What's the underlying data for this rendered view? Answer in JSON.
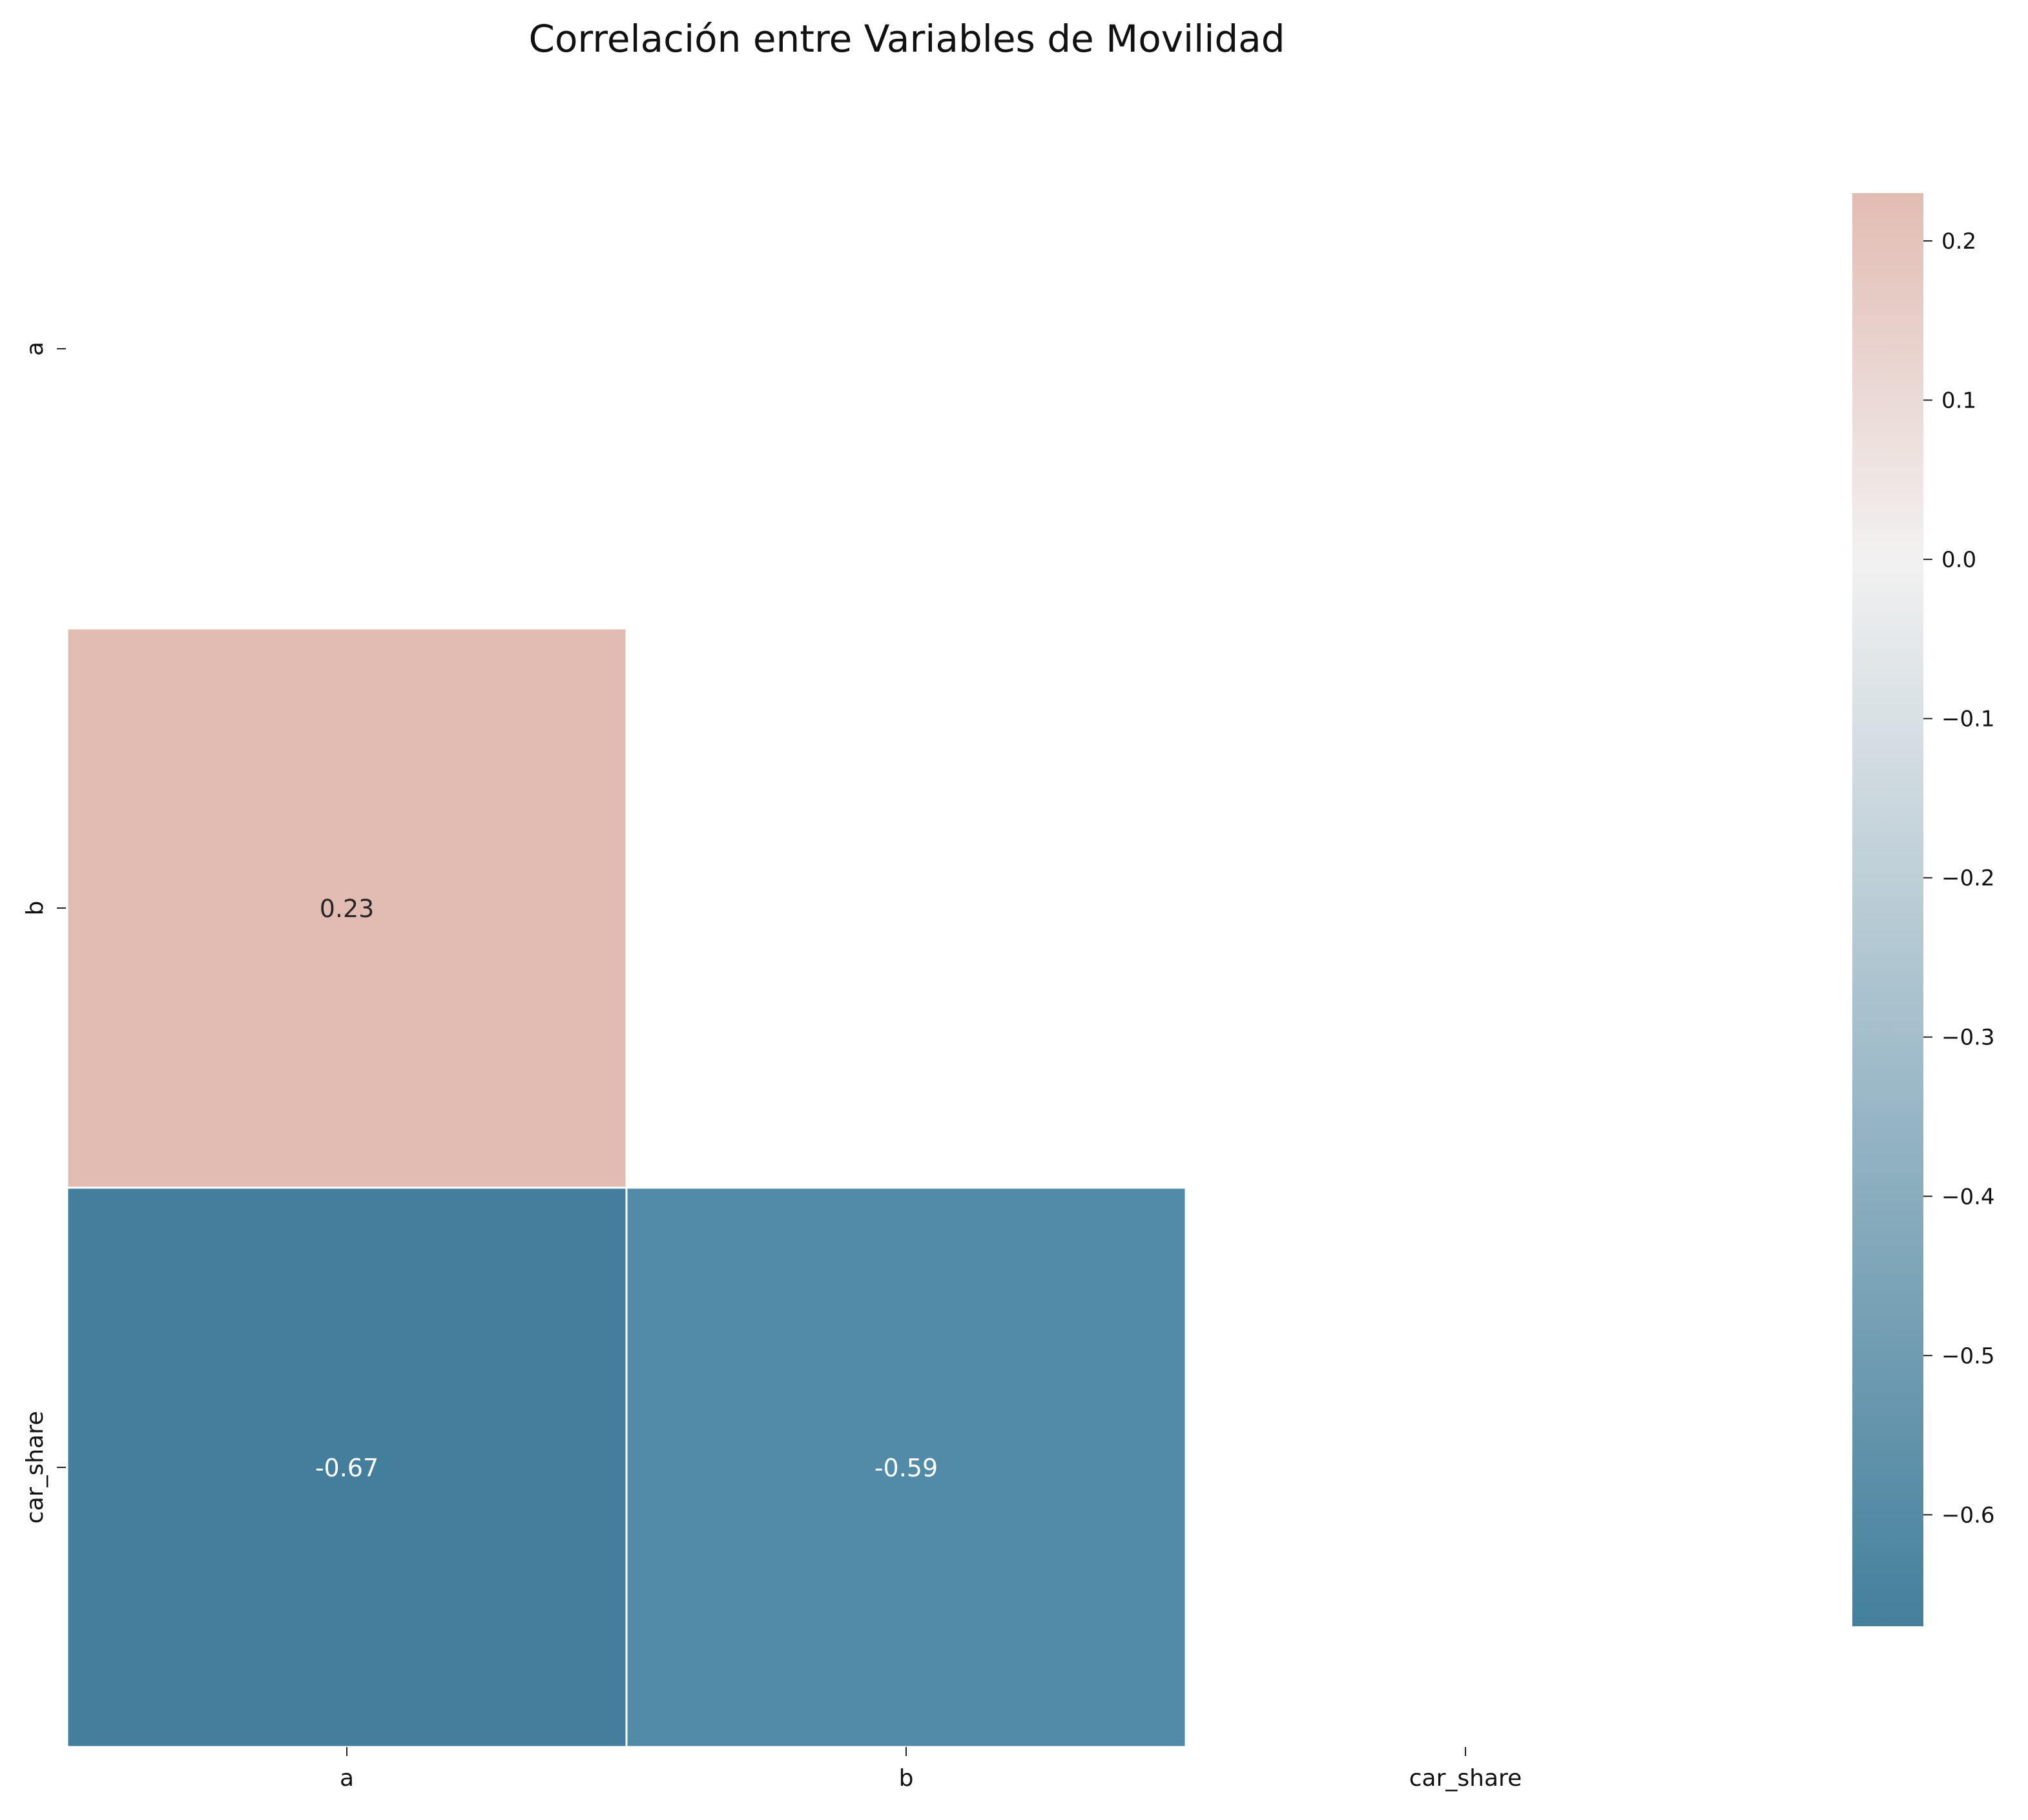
{
  "chart_data": {
    "type": "heatmap",
    "title": "Correlación entre Variables de Movilidad",
    "xlabel": "",
    "ylabel": "",
    "variables": [
      "a",
      "b",
      "car_share"
    ],
    "mask": "upper-triangle-including-diagonal",
    "cells": [
      {
        "row": "b",
        "col": "a",
        "value": 0.23,
        "label": "0.23",
        "color": "#e2bcb3",
        "text_color": "#262626"
      },
      {
        "row": "car_share",
        "col": "a",
        "value": -0.67,
        "label": "-0.67",
        "color": "#437f9c",
        "text_color": "#ffffff"
      },
      {
        "row": "car_share",
        "col": "b",
        "value": -0.59,
        "label": "-0.59",
        "color": "#528ba7",
        "text_color": "#ffffff"
      }
    ],
    "colorbar": {
      "range": [
        -0.67,
        0.23
      ],
      "ticks": [
        0.2,
        0.1,
        0.0,
        -0.1,
        -0.2,
        -0.3,
        -0.4,
        -0.5,
        -0.6
      ],
      "tick_labels": [
        "0.2",
        "0.1",
        "0.0",
        "−0.1",
        "−0.2",
        "−0.3",
        "−0.4",
        "−0.5",
        "−0.6"
      ],
      "colors": {
        "low": "#437f9c",
        "mid": "#f2f1f1",
        "high": "#e2bcb3"
      },
      "placement": "right"
    }
  }
}
